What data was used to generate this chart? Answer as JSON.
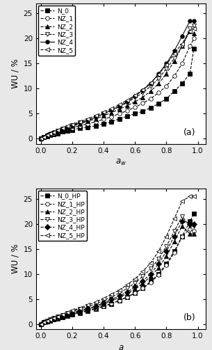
{
  "panel_a": {
    "title": "(a)",
    "xlabel": "a_w",
    "ylabel": "WU / %",
    "ylim": [
      -1,
      27
    ],
    "xlim": [
      -0.03,
      1.05
    ],
    "yticks": [
      0,
      5,
      10,
      15,
      20,
      25
    ],
    "xticks": [
      0.0,
      0.2,
      0.4,
      0.6,
      0.8,
      1.0
    ],
    "series": [
      {
        "label": "N_0",
        "marker": "s",
        "linestyle": "--",
        "markersize": 4,
        "markerfacecolor": "black",
        "x": [
          0.0,
          0.02,
          0.04,
          0.06,
          0.08,
          0.11,
          0.14,
          0.17,
          0.2,
          0.25,
          0.3,
          0.35,
          0.4,
          0.45,
          0.5,
          0.55,
          0.6,
          0.65,
          0.7,
          0.75,
          0.8,
          0.85,
          0.9,
          0.95,
          0.975
        ],
        "y": [
          0.0,
          0.3,
          0.5,
          0.7,
          0.9,
          1.1,
          1.4,
          1.6,
          1.8,
          2.1,
          2.3,
          2.6,
          3.0,
          3.4,
          4.0,
          4.5,
          5.0,
          5.5,
          6.2,
          7.0,
          8.0,
          9.5,
          11.0,
          13.0,
          18.0
        ]
      },
      {
        "label": "NZ_1",
        "marker": "o",
        "linestyle": "--",
        "markersize": 4,
        "markerfacecolor": "white",
        "x": [
          0.0,
          0.02,
          0.04,
          0.06,
          0.08,
          0.11,
          0.14,
          0.17,
          0.2,
          0.25,
          0.3,
          0.35,
          0.4,
          0.45,
          0.5,
          0.55,
          0.6,
          0.65,
          0.7,
          0.75,
          0.8,
          0.85,
          0.9,
          0.95,
          0.975
        ],
        "y": [
          0.0,
          0.4,
          0.7,
          0.9,
          1.1,
          1.4,
          1.7,
          2.0,
          2.2,
          2.6,
          3.0,
          3.4,
          3.9,
          4.4,
          5.0,
          5.6,
          6.3,
          7.1,
          8.0,
          9.2,
          10.5,
          12.5,
          15.0,
          18.5,
          20.0
        ]
      },
      {
        "label": "NZ_2",
        "marker": "^",
        "linestyle": "--",
        "markersize": 4,
        "markerfacecolor": "black",
        "x": [
          0.0,
          0.02,
          0.04,
          0.06,
          0.08,
          0.11,
          0.14,
          0.17,
          0.2,
          0.25,
          0.3,
          0.35,
          0.4,
          0.45,
          0.5,
          0.55,
          0.6,
          0.65,
          0.7,
          0.75,
          0.8,
          0.85,
          0.9,
          0.95,
          0.975
        ],
        "y": [
          0.0,
          0.4,
          0.7,
          1.0,
          1.3,
          1.6,
          1.9,
          2.2,
          2.5,
          3.0,
          3.5,
          4.0,
          4.6,
          5.2,
          5.9,
          6.6,
          7.4,
          8.3,
          9.5,
          11.0,
          13.0,
          15.5,
          18.5,
          21.5,
          21.0
        ]
      },
      {
        "label": "NZ_3",
        "marker": "v",
        "linestyle": "--",
        "markersize": 4,
        "markerfacecolor": "white",
        "x": [
          0.0,
          0.02,
          0.04,
          0.06,
          0.08,
          0.11,
          0.14,
          0.17,
          0.2,
          0.25,
          0.3,
          0.35,
          0.4,
          0.45,
          0.5,
          0.55,
          0.6,
          0.65,
          0.7,
          0.75,
          0.8,
          0.85,
          0.9,
          0.95,
          0.975
        ],
        "y": [
          -0.2,
          0.3,
          0.6,
          0.9,
          1.2,
          1.6,
          2.0,
          2.3,
          2.7,
          3.2,
          3.7,
          4.3,
          5.0,
          5.6,
          6.4,
          7.2,
          8.2,
          9.2,
          10.5,
          12.0,
          14.0,
          16.0,
          18.5,
          22.0,
          22.5
        ]
      },
      {
        "label": "NZ_4",
        "marker": "o",
        "linestyle": "-",
        "markersize": 4,
        "markerfacecolor": "black",
        "x": [
          0.0,
          0.02,
          0.04,
          0.06,
          0.08,
          0.11,
          0.14,
          0.17,
          0.2,
          0.25,
          0.3,
          0.35,
          0.4,
          0.45,
          0.5,
          0.55,
          0.6,
          0.65,
          0.7,
          0.75,
          0.8,
          0.85,
          0.9,
          0.95,
          0.975
        ],
        "y": [
          0.0,
          0.4,
          0.7,
          1.0,
          1.3,
          1.6,
          2.0,
          2.3,
          2.7,
          3.2,
          3.7,
          4.3,
          5.0,
          5.7,
          6.5,
          7.4,
          8.5,
          9.7,
          11.0,
          13.0,
          15.0,
          17.5,
          20.5,
          23.5,
          23.5
        ]
      },
      {
        "label": "NZ_5",
        "marker": "<",
        "linestyle": "--",
        "markersize": 4,
        "markerfacecolor": "white",
        "x": [
          0.0,
          0.02,
          0.04,
          0.06,
          0.08,
          0.11,
          0.14,
          0.17,
          0.2,
          0.25,
          0.3,
          0.35,
          0.4,
          0.45,
          0.5,
          0.55,
          0.6,
          0.65,
          0.7,
          0.75,
          0.8,
          0.85,
          0.9,
          0.95,
          0.975
        ],
        "y": [
          0.0,
          0.4,
          0.7,
          1.0,
          1.3,
          1.7,
          2.1,
          2.5,
          2.9,
          3.4,
          4.0,
          4.6,
          5.3,
          6.0,
          6.8,
          7.7,
          8.7,
          9.8,
          11.2,
          12.8,
          14.8,
          17.0,
          19.0,
          21.5,
          22.0
        ]
      }
    ]
  },
  "panel_b": {
    "title": "(b)",
    "xlabel": "a",
    "ylabel": "WU / %",
    "ylim": [
      -1,
      27
    ],
    "xlim": [
      -0.03,
      1.05
    ],
    "yticks": [
      0,
      5,
      10,
      15,
      20,
      25
    ],
    "xticks": [
      0.0,
      0.2,
      0.4,
      0.6,
      0.8,
      1.0
    ],
    "series": [
      {
        "label": "N_0_HP",
        "marker": "s",
        "linestyle": "--",
        "markersize": 4,
        "markerfacecolor": "black",
        "x": [
          0.0,
          0.02,
          0.04,
          0.06,
          0.08,
          0.11,
          0.14,
          0.17,
          0.2,
          0.25,
          0.3,
          0.35,
          0.4,
          0.45,
          0.5,
          0.55,
          0.6,
          0.65,
          0.7,
          0.75,
          0.8,
          0.85,
          0.9,
          0.95,
          0.975
        ],
        "y": [
          0.0,
          0.3,
          0.5,
          0.7,
          0.9,
          1.1,
          1.4,
          1.6,
          1.9,
          2.2,
          2.6,
          3.0,
          3.5,
          4.0,
          4.7,
          5.3,
          6.2,
          7.2,
          8.5,
          10.0,
          12.0,
          14.5,
          17.5,
          20.5,
          22.0
        ]
      },
      {
        "label": "NZ_1_HP",
        "marker": "o",
        "linestyle": "--",
        "markersize": 4,
        "markerfacecolor": "white",
        "x": [
          0.0,
          0.02,
          0.04,
          0.06,
          0.08,
          0.11,
          0.14,
          0.17,
          0.2,
          0.25,
          0.3,
          0.35,
          0.4,
          0.45,
          0.5,
          0.55,
          0.6,
          0.65,
          0.7,
          0.75,
          0.8,
          0.85,
          0.9,
          0.95,
          0.975
        ],
        "y": [
          0.0,
          0.3,
          0.5,
          0.7,
          0.9,
          1.1,
          1.4,
          1.7,
          2.0,
          2.3,
          2.7,
          3.1,
          3.6,
          4.1,
          4.7,
          5.4,
          6.2,
          7.1,
          8.3,
          9.8,
          11.8,
          14.2,
          17.5,
          19.0,
          18.5
        ]
      },
      {
        "label": "NZ_2_HP",
        "marker": "^",
        "linestyle": "--",
        "markersize": 4,
        "markerfacecolor": "black",
        "x": [
          0.0,
          0.02,
          0.04,
          0.06,
          0.08,
          0.11,
          0.14,
          0.17,
          0.2,
          0.25,
          0.3,
          0.35,
          0.4,
          0.45,
          0.5,
          0.55,
          0.6,
          0.65,
          0.7,
          0.75,
          0.8,
          0.85,
          0.9,
          0.95,
          0.975
        ],
        "y": [
          0.0,
          0.3,
          0.5,
          0.7,
          0.9,
          1.2,
          1.5,
          1.8,
          2.1,
          2.5,
          2.9,
          3.4,
          4.0,
          4.6,
          5.3,
          6.1,
          7.0,
          8.1,
          9.5,
          11.2,
          13.5,
          16.5,
          19.5,
          18.0,
          18.0
        ]
      },
      {
        "label": "NZ_3_HP",
        "marker": "v",
        "linestyle": "--",
        "markersize": 4,
        "markerfacecolor": "white",
        "x": [
          0.0,
          0.02,
          0.04,
          0.06,
          0.08,
          0.11,
          0.14,
          0.17,
          0.2,
          0.25,
          0.3,
          0.35,
          0.4,
          0.45,
          0.5,
          0.55,
          0.6,
          0.65,
          0.7,
          0.75,
          0.8,
          0.85,
          0.9,
          0.95,
          0.975
        ],
        "y": [
          -0.2,
          0.3,
          0.6,
          0.9,
          1.2,
          1.5,
          1.8,
          2.2,
          2.5,
          3.0,
          3.5,
          4.0,
          4.7,
          5.4,
          6.2,
          7.1,
          8.2,
          9.5,
          11.0,
          13.0,
          15.5,
          18.5,
          21.5,
          19.5,
          19.5
        ]
      },
      {
        "label": "NZ_4_HP",
        "marker": "D",
        "linestyle": "--",
        "markersize": 4,
        "markerfacecolor": "black",
        "x": [
          0.0,
          0.02,
          0.04,
          0.06,
          0.08,
          0.11,
          0.14,
          0.17,
          0.2,
          0.25,
          0.3,
          0.35,
          0.4,
          0.45,
          0.5,
          0.55,
          0.6,
          0.65,
          0.7,
          0.75,
          0.8,
          0.85,
          0.9,
          0.95,
          0.975
        ],
        "y": [
          0.0,
          0.3,
          0.5,
          0.8,
          1.0,
          1.3,
          1.6,
          1.9,
          2.2,
          2.7,
          3.1,
          3.6,
          4.2,
          4.9,
          5.6,
          6.4,
          7.4,
          8.6,
          10.0,
          12.0,
          14.5,
          17.5,
          20.5,
          20.0,
          20.0
        ]
      },
      {
        "label": "NZ_5_HP",
        "marker": "<",
        "linestyle": "--",
        "markersize": 4,
        "markerfacecolor": "white",
        "x": [
          0.0,
          0.02,
          0.04,
          0.06,
          0.08,
          0.11,
          0.14,
          0.17,
          0.2,
          0.25,
          0.3,
          0.35,
          0.4,
          0.45,
          0.5,
          0.55,
          0.6,
          0.65,
          0.7,
          0.75,
          0.8,
          0.85,
          0.9,
          0.95,
          0.975
        ],
        "y": [
          -0.1,
          0.3,
          0.6,
          0.9,
          1.2,
          1.5,
          1.9,
          2.3,
          2.7,
          3.2,
          3.8,
          4.4,
          5.1,
          5.9,
          6.8,
          7.8,
          9.0,
          10.5,
          12.2,
          14.5,
          17.5,
          21.0,
          24.5,
          25.5,
          25.5
        ]
      }
    ]
  },
  "figure_bg": "#e8e8e8",
  "axes_bg": "#ffffff",
  "legend_fontsize": 6.5,
  "tick_fontsize": 7.5,
  "label_fontsize": 8.5
}
